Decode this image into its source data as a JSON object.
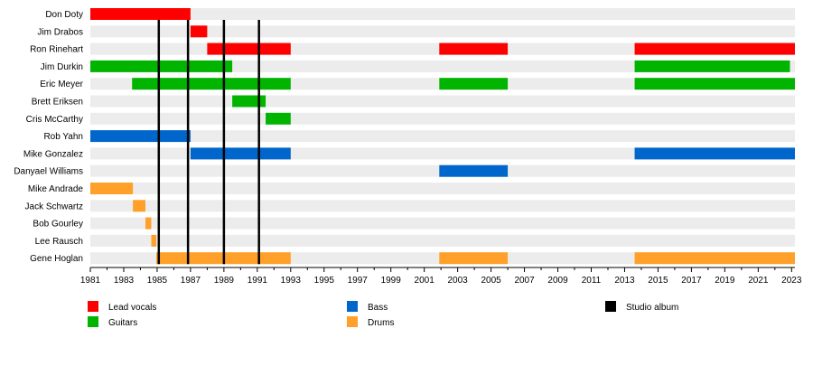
{
  "chart_data": {
    "type": "timeline",
    "title": "",
    "xlim": [
      1981,
      2023.2
    ],
    "x_ticks": [
      1981,
      1983,
      1985,
      1987,
      1989,
      1991,
      1993,
      1995,
      1997,
      1999,
      2001,
      2003,
      2005,
      2007,
      2009,
      2011,
      2013,
      2015,
      2017,
      2019,
      2021,
      2023
    ],
    "colors": {
      "vocals": "#ff0000",
      "guitars": "#00b400",
      "bass": "#0066cc",
      "drums": "#ffa02a",
      "album": "#000000"
    },
    "legend": [
      {
        "key": "vocals",
        "label": "Lead vocals"
      },
      {
        "key": "guitars",
        "label": "Guitars"
      },
      {
        "key": "bass",
        "label": "Bass"
      },
      {
        "key": "drums",
        "label": "Drums"
      },
      {
        "key": "album",
        "label": "Studio album"
      }
    ],
    "members": [
      {
        "name": "Don Doty",
        "bars": [
          {
            "role": "vocals",
            "from": 1981,
            "to": 1987
          }
        ]
      },
      {
        "name": "Jim Drabos",
        "bars": [
          {
            "role": "vocals",
            "from": 1987,
            "to": 1988
          }
        ]
      },
      {
        "name": "Ron Rinehart",
        "bars": [
          {
            "role": "vocals",
            "from": 1988,
            "to": 1993
          },
          {
            "role": "vocals",
            "from": 2001.9,
            "to": 2006
          },
          {
            "role": "vocals",
            "from": 2013.6,
            "to": 2023.2
          }
        ]
      },
      {
        "name": "Jim Durkin",
        "bars": [
          {
            "role": "guitars",
            "from": 1981,
            "to": 1989.5
          },
          {
            "role": "guitars",
            "from": 2013.6,
            "to": 2022.9
          }
        ]
      },
      {
        "name": "Eric Meyer",
        "bars": [
          {
            "role": "guitars",
            "from": 1983.5,
            "to": 1993
          },
          {
            "role": "guitars",
            "from": 2001.9,
            "to": 2006
          },
          {
            "role": "guitars",
            "from": 2013.6,
            "to": 2023.2
          }
        ]
      },
      {
        "name": "Brett Eriksen",
        "bars": [
          {
            "role": "guitars",
            "from": 1989.5,
            "to": 1991.5
          }
        ]
      },
      {
        "name": "Cris McCarthy",
        "bars": [
          {
            "role": "guitars",
            "from": 1991.5,
            "to": 1993
          }
        ]
      },
      {
        "name": "Rob Yahn",
        "bars": [
          {
            "role": "bass",
            "from": 1981,
            "to": 1987
          }
        ]
      },
      {
        "name": "Mike Gonzalez",
        "bars": [
          {
            "role": "bass",
            "from": 1987,
            "to": 1993
          },
          {
            "role": "bass",
            "from": 2013.6,
            "to": 2023.2
          }
        ]
      },
      {
        "name": "Danyael Williams",
        "bars": [
          {
            "role": "bass",
            "from": 2001.9,
            "to": 2006
          }
        ]
      },
      {
        "name": "Mike Andrade",
        "bars": [
          {
            "role": "drums",
            "from": 1981,
            "to": 1983.55
          }
        ]
      },
      {
        "name": "Jack Schwartz",
        "bars": [
          {
            "role": "drums",
            "from": 1983.55,
            "to": 1984.3
          }
        ]
      },
      {
        "name": "Bob Gourley",
        "bars": [
          {
            "role": "drums",
            "from": 1984.3,
            "to": 1984.65
          }
        ]
      },
      {
        "name": "Lee Rausch",
        "bars": [
          {
            "role": "drums",
            "from": 1984.65,
            "to": 1984.95
          }
        ]
      },
      {
        "name": "Gene Hoglan",
        "bars": [
          {
            "role": "drums",
            "from": 1984.95,
            "to": 1993
          },
          {
            "role": "drums",
            "from": 2001.9,
            "to": 2006
          },
          {
            "role": "drums",
            "from": 2013.6,
            "to": 2023.2
          }
        ]
      }
    ],
    "studio_albums": [
      1985.1,
      1986.85,
      1989.0,
      1991.1
    ]
  }
}
